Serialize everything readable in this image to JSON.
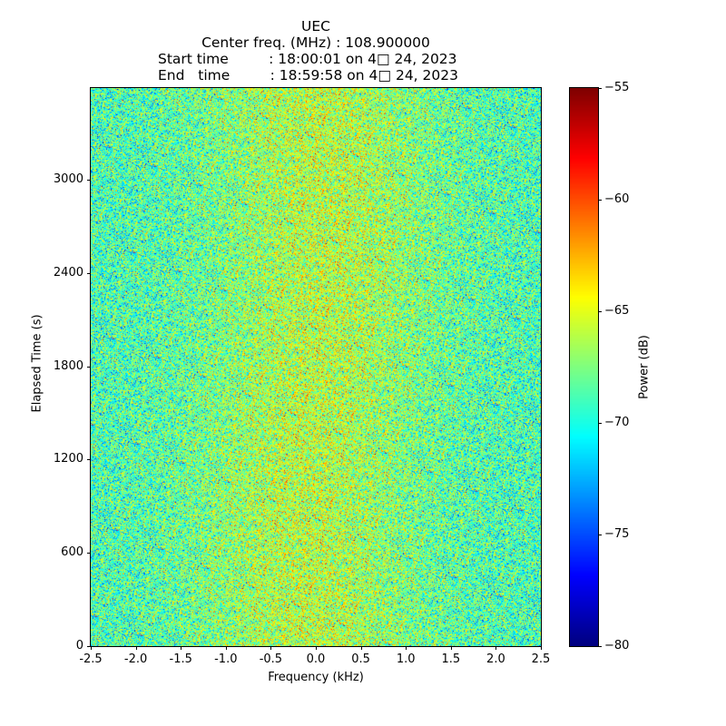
{
  "chart_data": {
    "type": "heatmap",
    "title_lines": [
      "UEC",
      "Center freq. (MHz) : 108.900000",
      "Start time         : 18:00:01 on 4□ 24, 2023",
      "End   time         : 18:59:58 on 4□ 24, 2023"
    ],
    "xlabel": "Frequency (kHz)",
    "ylabel": "Elapsed Time (s)",
    "xlim": [
      -2.5,
      2.5
    ],
    "ylim": [
      0,
      3590
    ],
    "xticks": [
      "-2.5",
      "-2.0",
      "-1.5",
      "-1.0",
      "-0.5",
      "0.0",
      "0.5",
      "1.0",
      "1.5",
      "2.0",
      "2.5"
    ],
    "yticks": [
      "0",
      "600",
      "1200",
      "1800",
      "2400",
      "3000"
    ],
    "colorbar": {
      "label": "Power (dB)",
      "range": [
        -80,
        -55
      ],
      "ticks": [
        "−80",
        "−75",
        "−70",
        "−65",
        "−60",
        "−55"
      ],
      "colormap": "jet"
    },
    "description_values": {
      "typical_power_db": -69,
      "center_excess_db": 3
    }
  }
}
